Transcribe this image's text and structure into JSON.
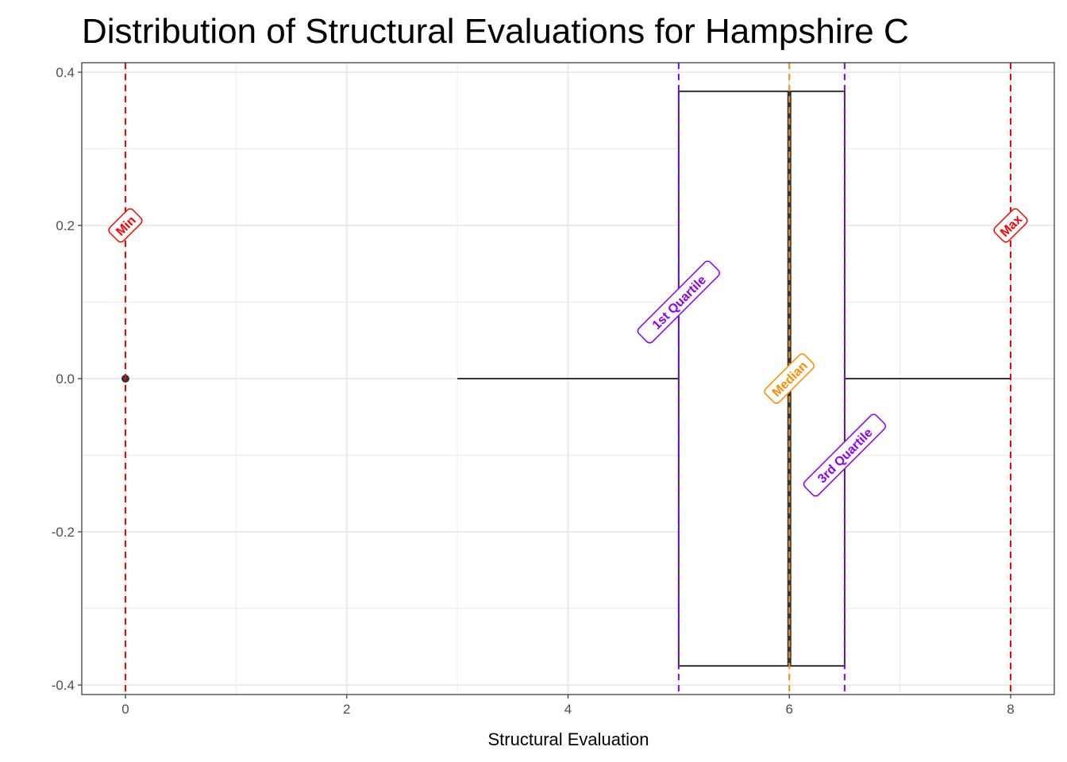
{
  "chart_data": {
    "type": "boxplot",
    "title": "Distribution of Structural Evaluations for Hampshire C",
    "xlabel": "Structural Evaluation",
    "ylabel": "",
    "xlim": [
      -0.4,
      8.4
    ],
    "ylim": [
      -0.41,
      0.41
    ],
    "x_ticks": [
      0,
      2,
      4,
      6,
      8
    ],
    "x_tick_labels": [
      "0",
      "2",
      "4",
      "6",
      "8"
    ],
    "y_ticks": [
      -0.4,
      -0.2,
      0.0,
      0.2,
      0.4
    ],
    "y_tick_labels": [
      "-0.4",
      "-0.2",
      "0.0",
      "0.2",
      "0.4"
    ],
    "grid": true,
    "box": {
      "lower_whisker": 3,
      "q1": 5,
      "median": 6,
      "q3": 6.5,
      "upper_whisker": 8,
      "half_width": 0.375
    },
    "outliers": [
      0
    ],
    "reference_lines": [
      {
        "label": "Min",
        "x": 0,
        "label_y": 0.2,
        "color": "#FF0000"
      },
      {
        "label": "1st Quartile",
        "x": 5,
        "label_y": 0.1,
        "color": "#8B00FF"
      },
      {
        "label": "Median",
        "x": 6,
        "label_y": 0.0,
        "color": "#FF8C00"
      },
      {
        "label": "3rd Quartile",
        "x": 6.5,
        "label_y": -0.1,
        "color": "#8B00FF"
      },
      {
        "label": "Max",
        "x": 8,
        "label_y": 0.2,
        "color": "#FF0000"
      }
    ]
  }
}
